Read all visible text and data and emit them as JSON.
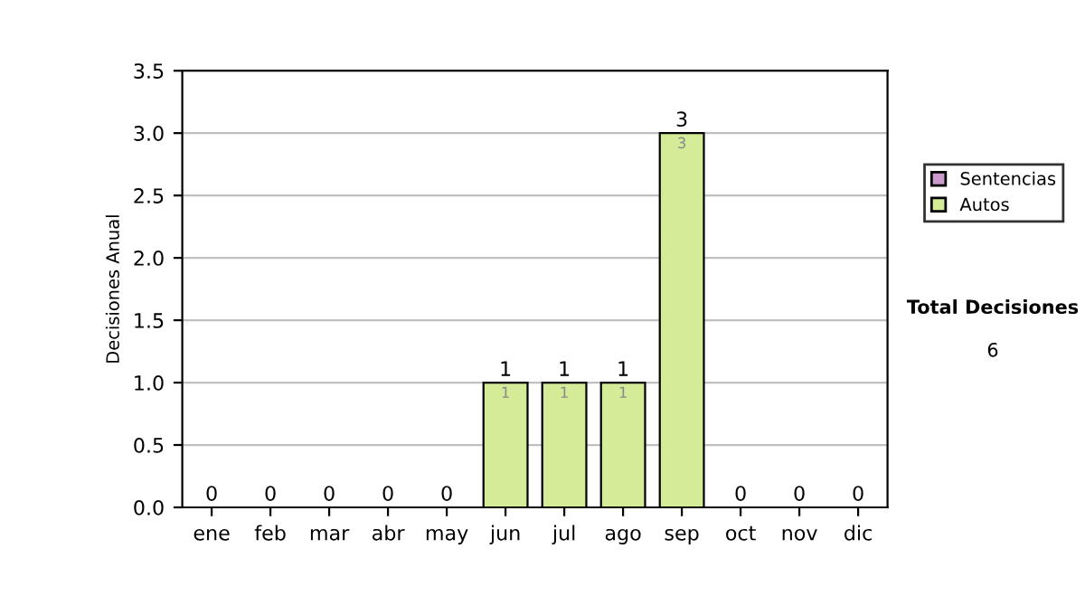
{
  "chart_data": {
    "type": "bar",
    "ylabel": "Decisiones Anual",
    "categories": [
      "ene",
      "feb",
      "mar",
      "abr",
      "may",
      "jun",
      "jul",
      "ago",
      "sep",
      "oct",
      "nov",
      "dic"
    ],
    "series": [
      {
        "name": "Sentencias",
        "color": "#cc99cc",
        "values": [
          0,
          0,
          0,
          0,
          0,
          0,
          0,
          0,
          0,
          0,
          0,
          0
        ]
      },
      {
        "name": "Autos",
        "color": "#d4ec98",
        "values": [
          0,
          0,
          0,
          0,
          0,
          1,
          1,
          1,
          3,
          0,
          0,
          0
        ],
        "value_labels": [
          null,
          null,
          null,
          null,
          null,
          "1",
          "1",
          "1",
          "3",
          null,
          null,
          null
        ]
      }
    ],
    "stacked": true,
    "totals": [
      "0",
      "0",
      "0",
      "0",
      "0",
      "1",
      "1",
      "1",
      "3",
      "0",
      "0",
      "0"
    ],
    "ylim": [
      0,
      3.5
    ],
    "yticks": [
      {
        "value": 0,
        "label": "0.0"
      },
      {
        "value": 0.5,
        "label": "0.5"
      },
      {
        "value": 1,
        "label": "1.0"
      },
      {
        "value": 1.5,
        "label": "1.5"
      },
      {
        "value": 2,
        "label": "2.0"
      },
      {
        "value": 2.5,
        "label": "2.5"
      },
      {
        "value": 3,
        "label": "3.0"
      },
      {
        "value": 3.5,
        "label": "3.5"
      }
    ],
    "grid": "y",
    "legend": "right",
    "annotations": [
      "Total Decisiones",
      "6"
    ]
  }
}
